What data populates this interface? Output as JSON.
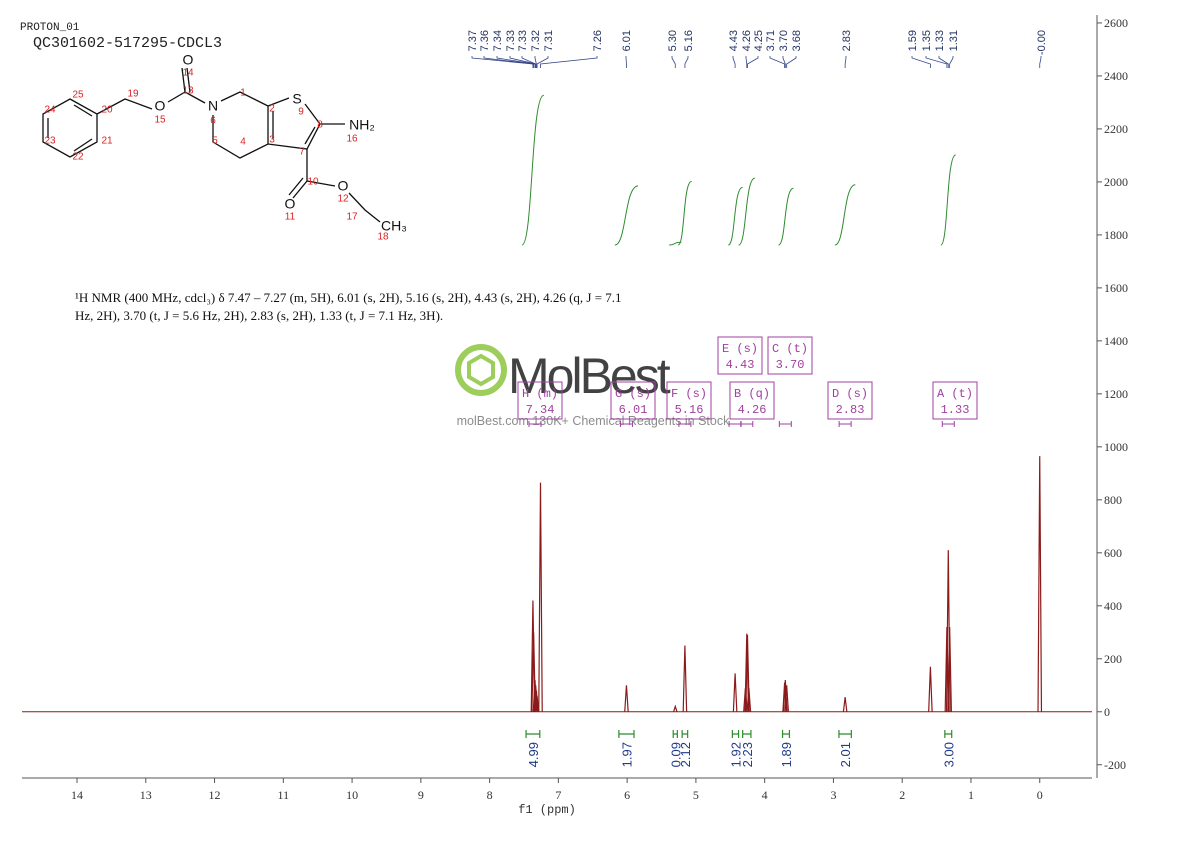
{
  "header": {
    "run": "PROTON_01",
    "sample": "QC301602-517295-CDCL3"
  },
  "description": [
    "¹H NMR (400 MHz, cdcl₃) δ 7.47 – 7.27 (m, 5H), 6.01 (s, 2H), 5.16 (s, 2H), 4.43 (s, 2H), 4.26 (q, J = 7.1",
    "Hz, 2H), 3.70 (t, J = 5.6 Hz, 2H), 2.83 (s, 2H), 1.33 (t, J = 7.1 Hz, 3H)."
  ],
  "structure": {
    "labels": [
      "O",
      "14",
      "13",
      "O",
      "15",
      "19",
      "20",
      "21",
      "22",
      "23",
      "24",
      "25",
      "N",
      "6",
      "1",
      "2",
      "S",
      "9",
      "8",
      "NH₂",
      "16",
      "7",
      "3",
      "4",
      "5",
      "10",
      "O",
      "11",
      "O",
      "12",
      "17",
      "CH₃",
      "18"
    ]
  },
  "watermark": {
    "brand": "MolBest",
    "tagline": "molBest.com 130K+ Chemical Reagents in Stock"
  },
  "chart_data": {
    "type": "nmr",
    "x_label": "f1 (ppm)",
    "xlim": [
      14.8,
      -0.76
    ],
    "xticks": [
      14,
      13,
      12,
      11,
      10,
      9,
      8,
      7,
      6,
      5,
      4,
      3,
      2,
      1,
      0
    ],
    "ylim": [
      -250,
      2630
    ],
    "yticks": [
      -200,
      0,
      200,
      400,
      600,
      800,
      1000,
      1200,
      1400,
      1600,
      1800,
      2000,
      2200,
      2400,
      2600
    ],
    "color": "#8b1a1a",
    "peaks": {
      "x": [
        7.37,
        7.36,
        7.34,
        7.33,
        7.32,
        7.31,
        7.26,
        6.01,
        5.3,
        5.16,
        4.43,
        4.28,
        4.26,
        4.25,
        4.23,
        3.71,
        3.7,
        3.68,
        2.83,
        1.59,
        1.35,
        1.33,
        1.31,
        0
      ],
      "values": [
        420,
        300,
        120,
        100,
        80,
        60,
        865,
        100,
        20,
        250,
        145,
        90,
        295,
        290,
        90,
        110,
        120,
        100,
        55,
        170,
        320,
        610,
        320,
        965
      ]
    },
    "peak_labels": [
      7.37,
      7.36,
      7.34,
      7.33,
      7.33,
      7.32,
      7.31,
      7.26,
      6.01,
      {
        "value": 5.3,
        "label": "5.30"
      },
      5.16,
      4.43,
      4.26,
      4.25,
      3.71,
      {
        "value": 3.7,
        "label": "3.70"
      },
      3.68,
      2.83,
      1.59,
      1.35,
      1.33,
      1.31,
      {
        "value": 0,
        "label": "-0.00"
      }
    ],
    "integrals": {
      "color": "#2e8b2e",
      "ranges": [
        [
          7.47,
          7.27
        ],
        [
          6.12,
          5.9
        ],
        [
          5.33,
          5.27
        ],
        [
          5.2,
          5.12
        ],
        [
          4.47,
          4.38
        ],
        [
          4.32,
          4.2
        ],
        [
          3.74,
          3.64
        ],
        [
          2.92,
          2.74
        ],
        [
          1.38,
          1.28
        ]
      ],
      "values": [
        4.99,
        1.97,
        0.09,
        2.12,
        1.92,
        2.23,
        1.89,
        2.01,
        3
      ],
      "value_labels": [
        "4.99",
        "1.97",
        "0.09",
        "2.12",
        "1.92",
        "2.23",
        "1.89",
        "2.01",
        "3.00"
      ]
    },
    "multiplets": [
      {
        "name": "H (m)",
        "shift": 7.34
      },
      {
        "name": "G (s)",
        "shift": 6.01
      },
      {
        "name": "F (s)",
        "shift": 5.16
      },
      {
        "name": "E (s)",
        "shift": 4.43
      },
      {
        "name": "B (q)",
        "shift": 4.26
      },
      {
        "name": "C (t)",
        "shift": {
          "value": 3.7,
          "label": "3.70"
        }
      },
      {
        "name": "D (s)",
        "shift": 2.83
      },
      {
        "name": "A (t)",
        "shift": 1.33
      }
    ]
  }
}
